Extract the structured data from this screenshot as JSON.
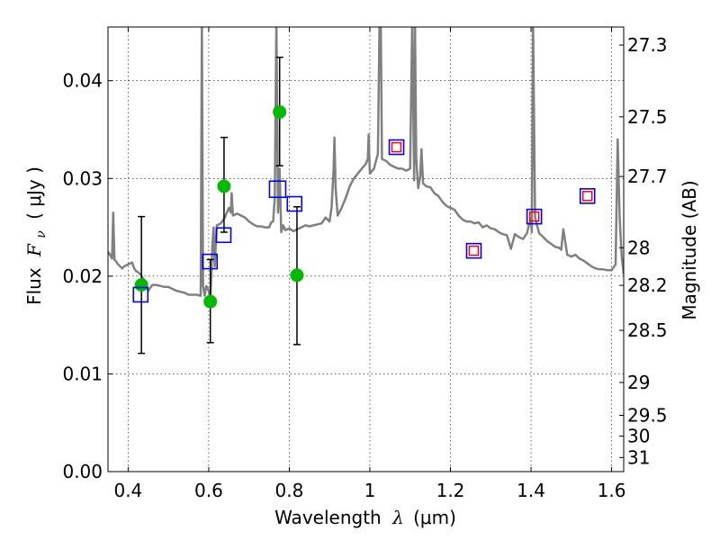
{
  "chart_data": {
    "type": "scatter",
    "xlabel_prefix": "Wavelength",
    "xlabel_symbol": "λ",
    "xlabel_unit": "(μm)",
    "ylabel_prefix": "Flux",
    "ylabel_symbol": "F",
    "ylabel_subscript": "ν",
    "ylabel_unit": "( μJy )",
    "y2label": "Magnitude (AB)",
    "xlim": [
      0.35,
      1.63
    ],
    "ylim": [
      0.0,
      0.0455
    ],
    "x_ticks": [
      0.4,
      0.6,
      0.8,
      1.0,
      1.2,
      1.4,
      1.6
    ],
    "x_tick_labels": [
      "0.4",
      "0.6",
      "0.8",
      "1",
      "1.2",
      "1.4",
      "1.6"
    ],
    "y_ticks": [
      0.0,
      0.01,
      0.02,
      0.03,
      0.04
    ],
    "y_tick_labels": [
      "0.00",
      "0.01",
      "0.02",
      "0.03",
      "0.04"
    ],
    "y2_ticks": [
      27.3,
      27.5,
      27.7,
      28,
      28.2,
      28.5,
      29,
      29.5,
      30,
      31
    ],
    "y2_tick_labels": [
      "27.3",
      "27.5",
      "27.7",
      "28",
      "28.2",
      "28.5",
      "29",
      "29.5",
      "30",
      "31"
    ],
    "grid": true,
    "colors": {
      "sed": "#808080",
      "observed": "#00bb00",
      "errorbar": "#000000",
      "model_box": "#0000ff",
      "upper_box": "#ff0000"
    },
    "sed_model": {
      "name": "",
      "x": [
        0.35,
        0.355,
        0.36,
        0.363,
        0.366,
        0.37,
        0.375,
        0.38,
        0.385,
        0.39,
        0.395,
        0.4,
        0.405,
        0.41,
        0.415,
        0.42,
        0.425,
        0.43,
        0.435,
        0.44,
        0.445,
        0.45,
        0.46,
        0.47,
        0.48,
        0.49,
        0.5,
        0.51,
        0.52,
        0.53,
        0.54,
        0.55,
        0.56,
        0.57,
        0.58,
        0.583,
        0.586,
        0.59,
        0.594,
        0.6,
        0.604,
        0.607,
        0.609,
        0.612,
        0.615,
        0.62,
        0.63,
        0.64,
        0.65,
        0.655,
        0.657,
        0.66,
        0.67,
        0.68,
        0.69,
        0.7,
        0.71,
        0.72,
        0.73,
        0.74,
        0.75,
        0.755,
        0.76,
        0.764,
        0.768,
        0.772,
        0.776,
        0.78,
        0.785,
        0.79,
        0.8,
        0.81,
        0.82,
        0.83,
        0.84,
        0.85,
        0.86,
        0.87,
        0.88,
        0.89,
        0.9,
        0.905,
        0.91,
        0.912,
        0.915,
        0.92,
        0.93,
        0.94,
        0.95,
        0.96,
        0.97,
        0.98,
        0.99,
        0.995,
        0.997,
        1.0,
        1.01,
        1.02,
        1.024,
        1.027,
        1.03,
        1.04,
        1.05,
        1.06,
        1.07,
        1.08,
        1.09,
        1.1,
        1.105,
        1.11,
        1.112,
        1.115,
        1.12,
        1.125,
        1.128,
        1.132,
        1.14,
        1.15,
        1.16,
        1.17,
        1.18,
        1.19,
        1.2,
        1.21,
        1.22,
        1.23,
        1.24,
        1.25,
        1.26,
        1.27,
        1.28,
        1.29,
        1.3,
        1.31,
        1.32,
        1.33,
        1.34,
        1.35,
        1.36,
        1.37,
        1.38,
        1.39,
        1.395,
        1.4,
        1.402,
        1.405,
        1.41,
        1.42,
        1.43,
        1.44,
        1.45,
        1.46,
        1.47,
        1.475,
        1.48,
        1.49,
        1.5,
        1.51,
        1.52,
        1.53,
        1.54,
        1.55,
        1.56,
        1.57,
        1.58,
        1.59,
        1.6,
        1.61,
        1.615,
        1.62,
        1.625,
        1.63
      ],
      "y": [
        0.0225,
        0.0222,
        0.0218,
        0.0265,
        0.0217,
        0.0215,
        0.0212,
        0.021,
        0.0208,
        0.021,
        0.0211,
        0.0212,
        0.0213,
        0.0214,
        0.0208,
        0.0205,
        0.0204,
        0.0202,
        0.0199,
        0.0196,
        0.019,
        0.0185,
        0.0191,
        0.0191,
        0.019,
        0.0189,
        0.0189,
        0.0187,
        0.0185,
        0.0184,
        0.0183,
        0.0181,
        0.0181,
        0.0181,
        0.018,
        0.046,
        0.019,
        0.018,
        0.019,
        0.0185,
        0.0175,
        0.0205,
        0.023,
        0.025,
        0.021,
        0.0252,
        0.0254,
        0.026,
        0.027,
        0.0265,
        0.0285,
        0.0262,
        0.0264,
        0.0262,
        0.026,
        0.0256,
        0.0253,
        0.0251,
        0.0251,
        0.025,
        0.025,
        0.0255,
        0.0256,
        0.028,
        0.046,
        0.0265,
        0.031,
        0.0245,
        0.0252,
        0.0247,
        0.0249,
        0.0246,
        0.0248,
        0.025,
        0.0252,
        0.0251,
        0.0252,
        0.0253,
        0.0254,
        0.026,
        0.0256,
        0.027,
        0.031,
        0.0342,
        0.029,
        0.0262,
        0.027,
        0.028,
        0.0292,
        0.03,
        0.0305,
        0.031,
        0.0315,
        0.032,
        0.0345,
        0.0305,
        0.031,
        0.0325,
        0.046,
        0.046,
        0.032,
        0.0318,
        0.0314,
        0.0312,
        0.031,
        0.031,
        0.0308,
        0.031,
        0.046,
        0.0298,
        0.046,
        0.032,
        0.029,
        0.0302,
        0.033,
        0.0295,
        0.0292,
        0.0291,
        0.0285,
        0.0282,
        0.0276,
        0.0272,
        0.027,
        0.0268,
        0.0262,
        0.0258,
        0.0256,
        0.0256,
        0.0254,
        0.0255,
        0.025,
        0.0252,
        0.0249,
        0.0248,
        0.0245,
        0.0243,
        0.0242,
        0.0228,
        0.0243,
        0.024,
        0.0238,
        0.0244,
        0.0253,
        0.0258,
        0.0245,
        0.046,
        0.026,
        0.0244,
        0.024,
        0.0236,
        0.0233,
        0.023,
        0.0229,
        0.0227,
        0.0248,
        0.0222,
        0.022,
        0.0222,
        0.0218,
        0.0216,
        0.0213,
        0.021,
        0.0208,
        0.0207,
        0.0207,
        0.0206,
        0.0206,
        0.0212,
        0.034,
        0.026,
        0.022,
        0.0202
      ]
    },
    "observed_points": {
      "name": "",
      "x": [
        0.433,
        0.604,
        0.638,
        0.776,
        0.819
      ],
      "y": [
        0.0191,
        0.0174,
        0.0292,
        0.0368,
        0.0201
      ],
      "yerr_low": [
        0.0121,
        0.0132,
        0.0245,
        0.0313,
        0.013
      ],
      "yerr_high": [
        0.0261,
        0.0217,
        0.0342,
        0.0424,
        0.0271
      ]
    },
    "model_photometry": {
      "name": "",
      "x": [
        0.431,
        0.603,
        0.637,
        0.771,
        0.813,
        1.066,
        1.258,
        1.408,
        1.54
      ],
      "y": [
        0.0181,
        0.0215,
        0.0242,
        0.0289,
        0.0274,
        0.0332,
        0.0226,
        0.0261,
        0.0282
      ]
    },
    "nir_upper_points": {
      "name": "",
      "x": [
        1.066,
        1.258,
        1.408,
        1.54
      ],
      "y": [
        0.0332,
        0.0226,
        0.0261,
        0.0282
      ]
    }
  }
}
